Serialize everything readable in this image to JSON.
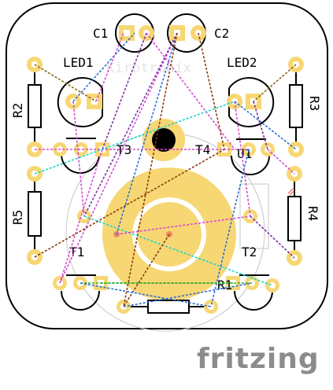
{
  "board": {
    "labels": {
      "c1": "C1",
      "c2": "C2",
      "led1": "LED1",
      "led2": "LED2",
      "r1": "R1",
      "r2": "R2",
      "r3": "R3",
      "r4": "R4",
      "r5": "R5",
      "t1": "T1",
      "t2": "T2",
      "t3": "T3",
      "t4": "T4",
      "u1": "U1"
    },
    "watermark": "Kirbtronix",
    "logo": "fritzing"
  },
  "colors": {
    "pad": "#f7d774",
    "pad_hole": "#ffffff",
    "pad_center": "#f08a5d",
    "silkscreen": "#000000",
    "board_outline": "#000000",
    "board_fill": "#ffffff",
    "ghost_outline": "#c8c8c8",
    "rat_magenta": "#d44bd4",
    "rat_blue": "#2a6fd6",
    "rat_brown": "#8b3a0f",
    "rat_purple": "#7b2fa0",
    "rat_olive": "#8a6a12",
    "rat_cyan": "#19d6c6",
    "rat_green": "#3aa832",
    "mount_hole": "#000000",
    "logo_gray": "#8c8c8c"
  }
}
